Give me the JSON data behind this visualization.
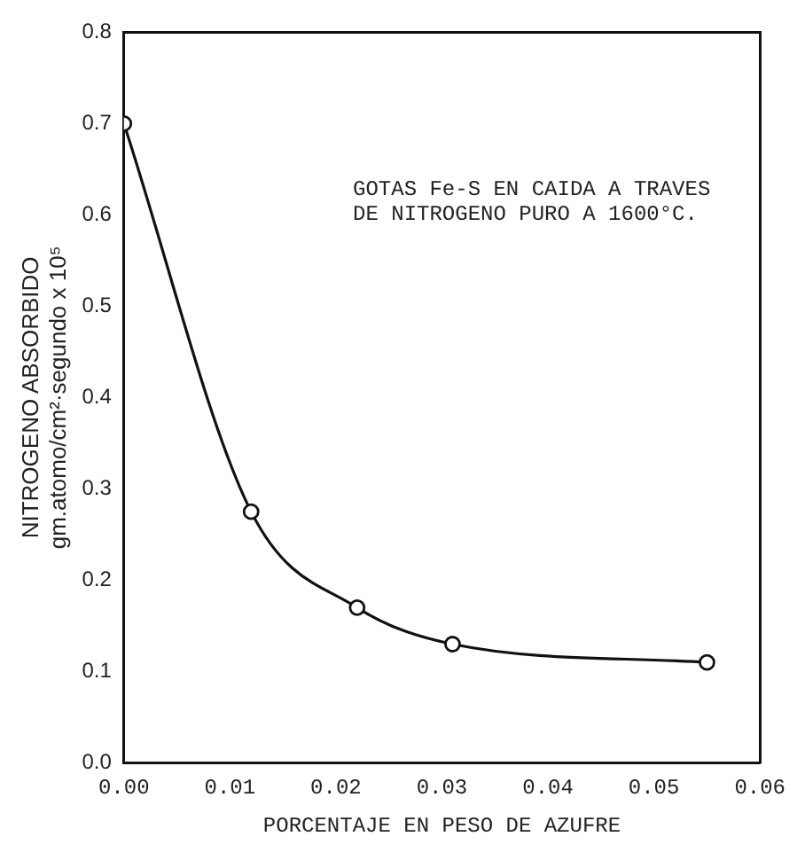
{
  "chart_data": {
    "type": "line",
    "xlabel": "PORCENTAJE EN PESO DE AZUFRE",
    "ylabel": [
      "NITROGENO ABSORBIDO",
      "gm.atomo/cm²·segundo x 10⁵"
    ],
    "annotations": [
      "GOTAS Fe-S EN CAIDA A TRAVES\nDE NITROGENO PURO A 1600°C."
    ],
    "x": [
      0,
      0.012,
      0.022,
      0.031,
      0.055
    ],
    "series": [
      {
        "color": "#111111",
        "values": [
          0.7,
          0.275,
          0.17,
          0.13,
          0.11
        ]
      }
    ],
    "xlim": [
      0,
      0.06
    ],
    "xticks": [
      {
        "value": 0,
        "label": "0.00"
      },
      {
        "value": 0.01,
        "label": "0.01"
      },
      {
        "value": 0.02,
        "label": "0.02"
      },
      {
        "value": 0.03,
        "label": "0.03"
      },
      {
        "value": 0.04,
        "label": "0.04"
      },
      {
        "value": 0.05,
        "label": "0.05"
      },
      {
        "value": 0.06,
        "label": "0.06"
      }
    ],
    "ylim": [
      0,
      0.8
    ],
    "yticks": [
      {
        "value": 0,
        "label": "0.0"
      },
      0.1,
      0.2,
      0.3,
      0.4,
      0.5,
      0.6,
      0.7,
      0.8
    ],
    "grid": false,
    "legend": false,
    "marker": "circle",
    "line_style": "solid"
  }
}
